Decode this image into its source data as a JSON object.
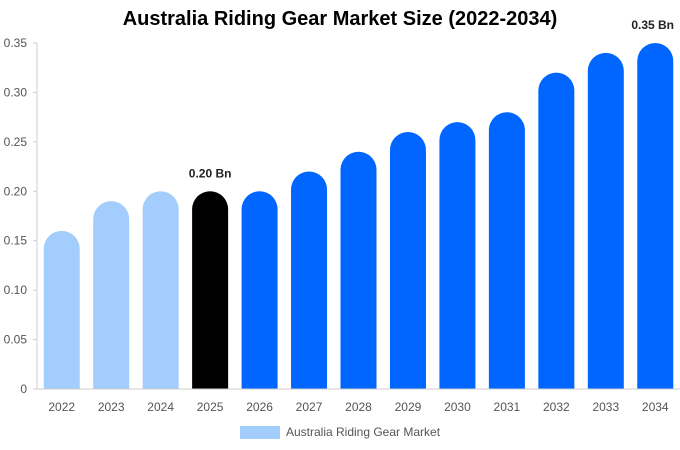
{
  "chart_data": {
    "type": "bar",
    "title": "Australia Riding Gear Market Size (2022-2034)",
    "categories": [
      "2022",
      "2023",
      "2024",
      "2025",
      "2026",
      "2027",
      "2028",
      "2029",
      "2030",
      "2031",
      "2032",
      "2033",
      "2034"
    ],
    "series": [
      {
        "name": "Australia Riding Gear Market",
        "values": [
          0.16,
          0.19,
          0.2,
          0.2,
          0.2,
          0.22,
          0.24,
          0.26,
          0.27,
          0.28,
          0.32,
          0.34,
          0.35
        ]
      }
    ],
    "bar_colors": [
      "#a2cdfd",
      "#a2cdfd",
      "#a2cdfd",
      "#000000",
      "#0066ff",
      "#0066ff",
      "#0066ff",
      "#0066ff",
      "#0066ff",
      "#0066ff",
      "#0066ff",
      "#0066ff",
      "#0066ff"
    ],
    "data_labels": [
      {
        "category": "2025",
        "text": "0.20 Bn"
      },
      {
        "category": "2034",
        "text": "0.35 Bn"
      }
    ],
    "yticks": [
      "0",
      "0.05",
      "0.10",
      "0.15",
      "0.20",
      "0.25",
      "0.30",
      "0.35"
    ],
    "ylim": [
      0,
      0.35
    ],
    "xlabel": "",
    "ylabel": "",
    "grid": false,
    "legend": {
      "position": "bottom",
      "label": "Australia Riding Gear Market",
      "color": "#a2cdfd"
    }
  }
}
